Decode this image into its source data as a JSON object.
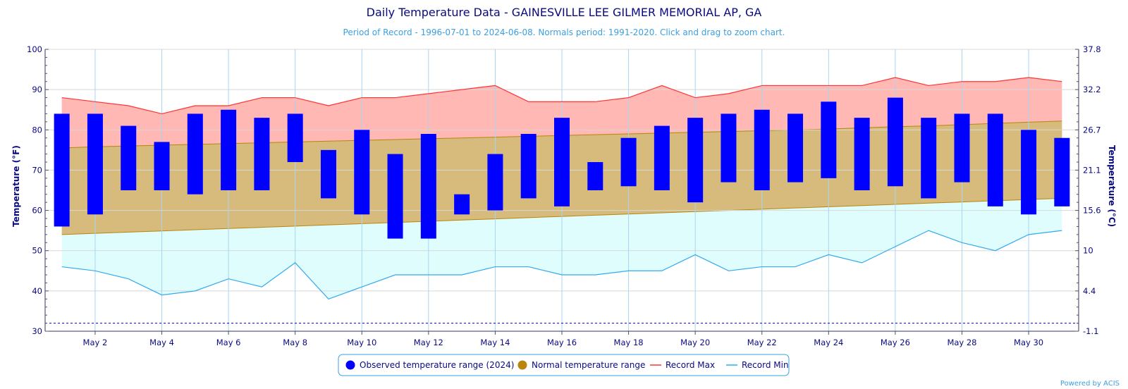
{
  "chart_data": {
    "type": "bar",
    "title": "Daily Temperature Data - GAINESVILLE LEE GILMER MEMORIAL AP, GA",
    "subtitle": "Period of Record - 1996-07-01 to 2024-06-08. Normals period: 1991-2020. Click and drag to zoom chart.",
    "ylabel": "Temperature (°F)",
    "ylabel_right": "Temperature (°C)",
    "ylim": [
      30,
      100
    ],
    "y_ticks": [
      "30",
      "40",
      "50",
      "60",
      "70",
      "80",
      "90",
      "100"
    ],
    "y_ticks_right": [
      "-1.1",
      "4.4",
      "10",
      "15.6",
      "21.1",
      "26.7",
      "32.2",
      "37.8"
    ],
    "x_tick_labels": [
      "May 2",
      "May 4",
      "May 6",
      "May 8",
      "May 10",
      "May 12",
      "May 14",
      "May 16",
      "May 18",
      "May 20",
      "May 22",
      "May 24",
      "May 26",
      "May 28",
      "May 30"
    ],
    "x_tick_days": [
      2,
      4,
      6,
      8,
      10,
      12,
      14,
      16,
      18,
      20,
      22,
      24,
      26,
      28,
      30
    ],
    "days": [
      1,
      2,
      3,
      4,
      5,
      6,
      7,
      8,
      9,
      10,
      11,
      12,
      13,
      14,
      15,
      16,
      17,
      18,
      19,
      20,
      21,
      22,
      23,
      24,
      25,
      26,
      27,
      28,
      29,
      30,
      31
    ],
    "freezing_line": 32,
    "legend_position": "bottom-center",
    "series": [
      {
        "name": "Observed temperature range (2024)",
        "color": "#0000ff",
        "high": [
          84,
          84,
          81,
          77,
          84,
          85,
          83,
          84,
          75,
          80,
          74,
          79,
          64,
          74,
          79,
          83,
          72,
          78,
          81,
          83,
          84,
          85,
          84,
          87,
          83,
          88,
          83,
          84,
          84,
          80,
          78
        ],
        "low": [
          56,
          59,
          65,
          65,
          64,
          65,
          65,
          72,
          63,
          59,
          53,
          53,
          59,
          60,
          63,
          61,
          65,
          66,
          65,
          62,
          67,
          65,
          67,
          68,
          65,
          66,
          63,
          67,
          61,
          59,
          61
        ]
      },
      {
        "name": "Normal temperature range",
        "color": "#b8860b",
        "high": [
          75.5,
          75.8,
          76.0,
          76.2,
          76.4,
          76.6,
          76.8,
          77.0,
          77.2,
          77.4,
          77.6,
          77.8,
          78.0,
          78.2,
          78.4,
          78.6,
          78.8,
          79.0,
          79.2,
          79.4,
          79.6,
          79.8,
          80.0,
          80.2,
          80.5,
          80.8,
          81.0,
          81.3,
          81.6,
          81.9,
          82.2
        ],
        "low": [
          54.0,
          54.3,
          54.6,
          54.9,
          55.2,
          55.5,
          55.8,
          56.1,
          56.4,
          56.7,
          57.0,
          57.3,
          57.6,
          57.9,
          58.2,
          58.5,
          58.8,
          59.1,
          59.4,
          59.7,
          60.0,
          60.3,
          60.6,
          60.9,
          61.2,
          61.5,
          61.8,
          62.1,
          62.4,
          62.7,
          63.0
        ]
      },
      {
        "name": "Record Max",
        "color": "#ff3333",
        "values": [
          88,
          87,
          86,
          84,
          86,
          86,
          88,
          88,
          86,
          88,
          88,
          89,
          90,
          91,
          87,
          87,
          87,
          88,
          91,
          88,
          89,
          91,
          91,
          91,
          91,
          93,
          91,
          92,
          92,
          93,
          92
        ]
      },
      {
        "name": "Record Min",
        "color": "#33aaee",
        "values": [
          46,
          45,
          43,
          39,
          40,
          43,
          41,
          47,
          38,
          41,
          44,
          44,
          44,
          46,
          46,
          44,
          44,
          45,
          45,
          49,
          45,
          46,
          46,
          49,
          47,
          51,
          55,
          52,
          50,
          54,
          55
        ]
      }
    ]
  },
  "credit": "Powered by ACIS"
}
